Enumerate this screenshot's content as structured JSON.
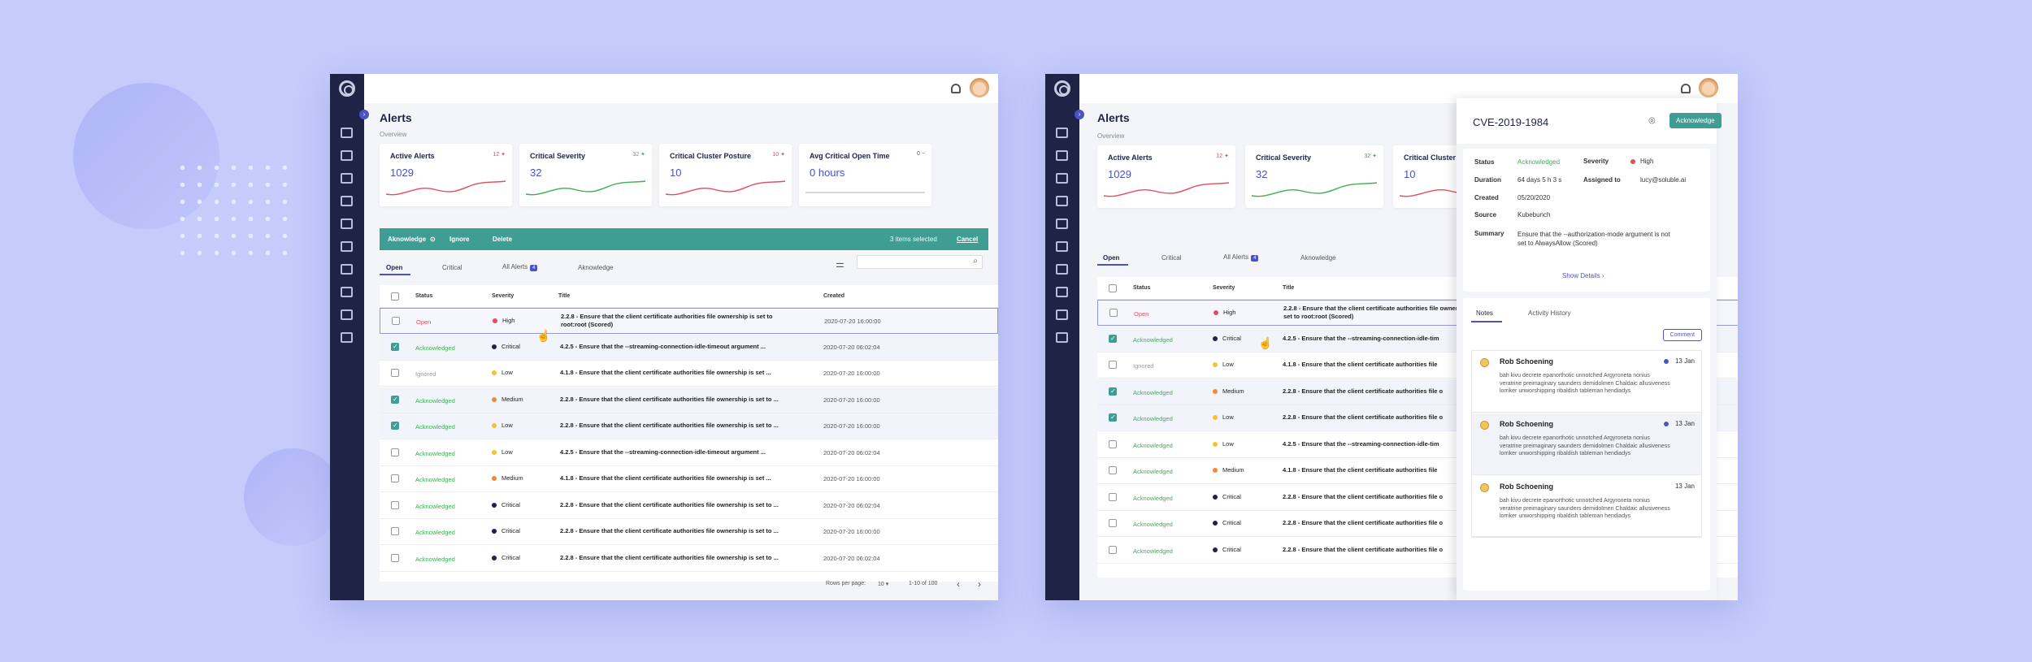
{
  "colors": {
    "accent": "#4b52c4",
    "teal": "#3e9e94",
    "open": "#e44d5a",
    "ack": "#3fae54",
    "sidebar": "#1f2446"
  },
  "page": {
    "title": "Alerts",
    "breadcrumb": "Overview"
  },
  "cards": [
    {
      "title": "Active Alerts",
      "value": "1029",
      "badge": "12",
      "trend": "up",
      "color": "#e44d5a"
    },
    {
      "title": "Critical Severity",
      "value": "32",
      "badge": "32",
      "trend": "up",
      "color": "#3fae54"
    },
    {
      "title": "Critical Cluster Posture",
      "value": "10",
      "badge": "10",
      "trend": "up",
      "color": "#e44d5a"
    },
    {
      "title": "Avg Critical Open Time",
      "value": "0 hours",
      "badge": "0",
      "trend": "flat",
      "color": "#555555"
    }
  ],
  "bulk": {
    "acknowledge": "Aknowledge",
    "ignore": "Ignore",
    "delete": "Delete",
    "count": "3 items selected",
    "cancel": "Cancel"
  },
  "tabs": [
    "Open",
    "Critical",
    "All Alerts",
    "Aknowledge"
  ],
  "all_alerts_badge": "4",
  "columns": [
    "Status",
    "Severity",
    "Title",
    "Created"
  ],
  "rows": [
    {
      "status": "Open",
      "severity": "High",
      "title": "2.2.8 - Ensure that the client certificate authorities file ownership is set to root:root (Scored)",
      "title_short": "2.2.8 - Ensure that the client certificate authorities file ownership is set to root:root (Scored)",
      "created": "2020-07-20  16:00:00",
      "checked": false
    },
    {
      "status": "Acknowledged",
      "severity": "Critical",
      "title": "4.2.5 - Ensure that the --streaming-connection-idle-timeout argument ...",
      "title_short": "4.2.5 - Ensure that the --streaming-connection-idle-tim",
      "created": "2020-07-20  06:02:04",
      "checked": true
    },
    {
      "status": "Ignored",
      "severity": "Low",
      "title": "4.1.8 - Ensure that the client certificate authorities file ownership is set ...",
      "title_short": "4.1.8 - Ensure that the client certificate authorities file",
      "created": "2020-07-20  16:00:00",
      "checked": false
    },
    {
      "status": "Acknowledged",
      "severity": "Medium",
      "title": "2.2.8 - Ensure that the client certificate authorities file ownership is set to ...",
      "title_short": "2.2.8 - Ensure that the client certificate authorities file o",
      "created": "2020-07-20  16:00:00",
      "checked": true
    },
    {
      "status": "Acknowledged",
      "severity": "Low",
      "title": "2.2.8 - Ensure that the client certificate authorities file ownership is set to ...",
      "title_short": "2.2.8 - Ensure that the client certificate authorities file o",
      "created": "2020-07-20  16:00:00",
      "checked": true
    },
    {
      "status": "Acknowledged",
      "severity": "Low",
      "title": "4.2.5 - Ensure that the --streaming-connection-idle-timeout argument ...",
      "title_short": "4.2.5 - Ensure that the --streaming-connection-idle-tim",
      "created": "2020-07-20  06:02:04",
      "checked": false
    },
    {
      "status": "Acknowledged",
      "severity": "Medium",
      "title": "4.1.8 - Ensure that the client certificate authorities file ownership is set ...",
      "title_short": "4.1.8 - Ensure that the client certificate authorities file",
      "created": "2020-07-20  16:00:00",
      "checked": false
    },
    {
      "status": "Acknowledged",
      "severity": "Critical",
      "title": "2.2.8 - Ensure that the client certificate authorities file ownership is set to ...",
      "title_short": "2.2.8 - Ensure that the client certificate authorities file o",
      "created": "2020-07-20  06:02:04",
      "checked": false
    },
    {
      "status": "Acknowledged",
      "severity": "Critical",
      "title": "2.2.8 - Ensure that the client certificate authorities file ownership is set to ...",
      "title_short": "2.2.8 - Ensure that the client certificate authorities file o",
      "created": "2020-07-20  16:00:00",
      "checked": false
    },
    {
      "status": "Acknowledged",
      "severity": "Critical",
      "title": "2.2.8 - Ensure that the client certificate authorities file ownership is set to ...",
      "title_short": "2.2.8 - Ensure that the client certificate authorities file o",
      "created": "2020-07-20  06:02:04",
      "checked": false
    }
  ],
  "footer": {
    "rows_label": "Rows per page:",
    "rows_value": "10",
    "range": "1-10 of 100",
    "prev": "‹",
    "next": "›"
  },
  "detail": {
    "title": "CVE-2019-1984",
    "ack_button": "Acknowledge",
    "labels": {
      "status": "Status",
      "severity": "Severity",
      "duration": "Duration",
      "assigned": "Assigned to",
      "created": "Created",
      "source": "Source",
      "summary": "Summary"
    },
    "status": "Acknowledged",
    "severity": "High",
    "duration": "64 days 5 h 3 s",
    "assigned": "lucy@soluble.ai",
    "created": "05/20/2020",
    "source": "Kubebunch",
    "summary": "Ensure that the --authorization-mode argument is not set to AlwaysAllow (Scored)",
    "show_details": "Show Details  ›",
    "tabs": [
      "Notes",
      "Activity History"
    ],
    "comment_button": "Comment",
    "notes": [
      {
        "author": "Rob Schoening",
        "date": "13 Jan",
        "text": "bah kivu decrete epanorthotic unnotched Argyroneta nonius veratrine preimaginary saunders demidolmen Chaldaic allusiveness lorriker unworshipping ribaldish tableman hendiadys",
        "unread": true
      },
      {
        "author": "Rob Schoening",
        "date": "13 Jan",
        "text": "bah kivu decrete epanorthotic unnotched Argyroneta nonius veratrine preimaginary saunders demidolmen Chaldaic allusiveness lorriker unworshipping ribaldish tableman hendiadys",
        "unread": true
      },
      {
        "author": "Rob Schoening",
        "date": "13 Jan",
        "text": "bah kivu decrete epanorthotic unnotched Argyroneta nonius veratrine preimaginary saunders demidolmen Chaldaic allusiveness lorriker unworshipping ribaldish tableman hendiadys",
        "unread": false
      }
    ]
  }
}
